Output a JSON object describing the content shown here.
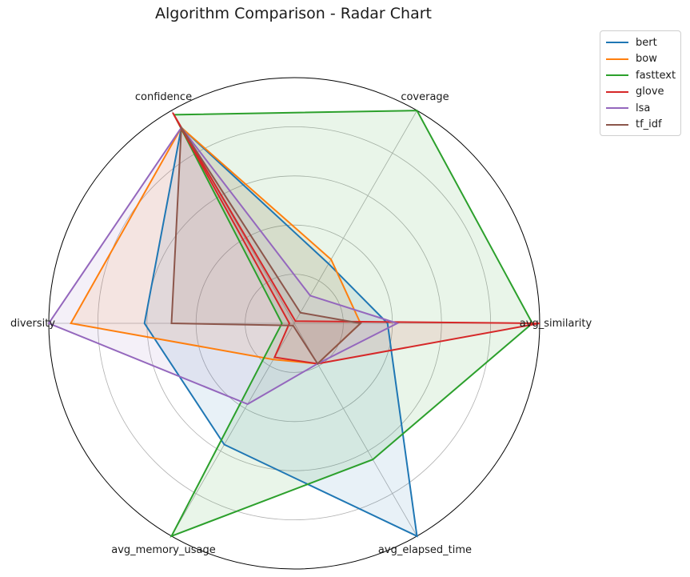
{
  "chart_data": {
    "type": "radar",
    "title": "Algorithm Comparison - Radar Chart",
    "axes": [
      "avg_similarity",
      "coverage",
      "confidence",
      "diversity",
      "avg_memory_usage",
      "avg_elapsed_time"
    ],
    "r_range": [
      0,
      1
    ],
    "grid": true,
    "legend_position": "top-right, outside plot",
    "series": [
      {
        "name": "bert",
        "color": "#1f77b4",
        "values": [
          0.38,
          0.28,
          0.92,
          0.61,
          0.57,
          1.0
        ]
      },
      {
        "name": "bow",
        "color": "#ff7f0e",
        "values": [
          0.27,
          0.3,
          0.92,
          0.91,
          0.17,
          0.19
        ]
      },
      {
        "name": "fasttext",
        "color": "#2ca02c",
        "values": [
          0.97,
          1.0,
          0.98,
          0.05,
          1.0,
          0.64
        ]
      },
      {
        "name": "glove",
        "color": "#d62728",
        "values": [
          1.0,
          0.01,
          0.99,
          0.02,
          0.16,
          0.19
        ]
      },
      {
        "name": "lsa",
        "color": "#9467bd",
        "values": [
          0.42,
          0.13,
          0.92,
          1.0,
          0.38,
          0.19
        ]
      },
      {
        "name": "tf_idf",
        "color": "#8c564b",
        "values": [
          0.27,
          0.05,
          0.92,
          0.5,
          0.01,
          0.19
        ]
      }
    ]
  }
}
